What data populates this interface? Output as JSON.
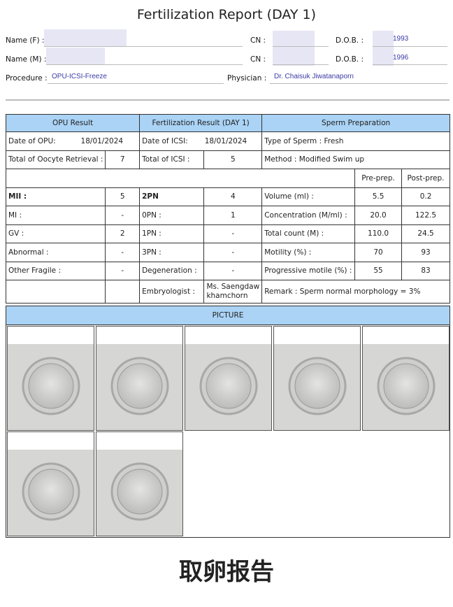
{
  "title": "Fertilization Report (DAY 1)",
  "header": {
    "name_f_label": "Name (F) :",
    "name_m_label": "Name (M) :",
    "cn_label": "CN :",
    "dob_label": "D.O.B. :",
    "dob_f": "1993",
    "dob_m": "1996",
    "procedure_label": "Procedure :",
    "procedure": "OPU-ICSI-Freeze",
    "physician_label": "Physician :",
    "physician": "Dr. Chaisuk  Jiwatanaporn"
  },
  "table": {
    "headers": [
      "OPU Result",
      "Fertilization Result (DAY 1)",
      "Sperm Preparation"
    ],
    "date_opu_label": "Date of OPU:",
    "date_opu": "18/01/2024",
    "date_icsi_label": "Date of ICSI:",
    "date_icsi": "18/01/2024",
    "sperm_type": "Type of Sperm :   Fresh",
    "oocyte_label": "Total of Oocyte Retrieval :",
    "oocyte": "7",
    "icsi_label": "Total of ICSI :",
    "icsi": "5",
    "method": "Method :  Modified Swim up",
    "pre": "Pre-prep.",
    "post": "Post-prep.",
    "rows": [
      {
        "a": "MII :",
        "av": "5",
        "b": "2PN",
        "bv": "4",
        "c": "Volume (ml) :",
        "pre": "5.5",
        "post": "0.2"
      },
      {
        "a": "MI :",
        "av": "-",
        "b": "0PN :",
        "bv": "1",
        "c": "Concentration (M/ml) :",
        "pre": "20.0",
        "post": "122.5"
      },
      {
        "a": "GV :",
        "av": "2",
        "b": "1PN :",
        "bv": "-",
        "c": "Total count (M) :",
        "pre": "110.0",
        "post": "24.5"
      },
      {
        "a": "Abnormal :",
        "av": "-",
        "b": "3PN :",
        "bv": "-",
        "c": "Motility (%) :",
        "pre": "70",
        "post": "93"
      },
      {
        "a": "Other Fragile :",
        "av": "-",
        "b": "Degeneration :",
        "bv": "-",
        "c": "Progressive motile (%) :",
        "pre": "55",
        "post": "83"
      }
    ],
    "embryologist_label": "Embryologist :",
    "embryologist_1": "Ms. Saengdaw",
    "embryologist_2": "khamchorn",
    "remark": "Remark : Sperm normal morphology = 3%"
  },
  "picture_label": "PICTURE",
  "footer": "取卵报告"
}
